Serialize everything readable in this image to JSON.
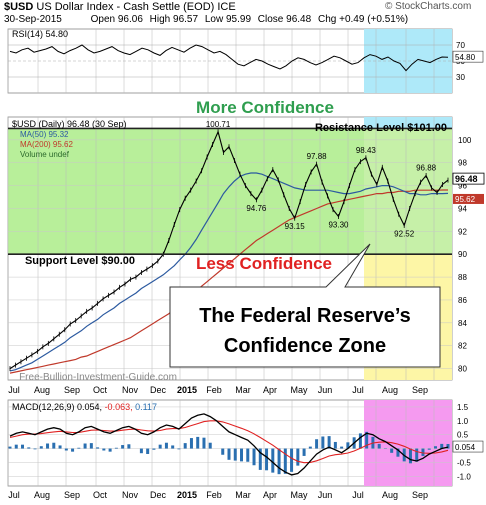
{
  "header": {
    "symbol": "$USD",
    "description": "US Dollar Index - Cash Settle (EOD)",
    "exchange": "ICE",
    "brand": "© StockCharts.com",
    "date": "30-Sep-2015",
    "open_label": "Open",
    "open": "96.06",
    "high_label": "High",
    "high": "96.57",
    "low_label": "Low",
    "low": "95.99",
    "close_label": "Close",
    "close": "96.48",
    "chg_label": "Chg",
    "chg": "+0.49 (+0.51%)"
  },
  "colors": {
    "green_zone": "#b8ef9a",
    "yellow_zone": "#fdf6a6",
    "cyan_zone": "#aee9f9",
    "magenta_zone": "#f59af0",
    "line_green": "#2f9e4f",
    "line_red": "#e02222",
    "ma50": "#2c5aa0",
    "ma200": "#c0392b",
    "resistance": "#222222",
    "support": "#222222"
  },
  "chart_data": [
    {
      "type": "line",
      "panel": "rsi",
      "legend": "RSI(14) 54.80",
      "ylim": [
        10,
        90
      ],
      "ticks": [
        "70",
        "50",
        "30"
      ],
      "last_value": "54.80",
      "overbought": 70,
      "oversold": 30,
      "values": [
        62,
        60,
        64,
        66,
        61,
        63,
        65,
        68,
        62,
        59,
        63,
        66,
        70,
        64,
        60,
        62,
        65,
        68,
        63,
        60,
        58,
        62,
        66,
        64,
        60,
        57,
        63,
        67,
        64,
        61,
        66,
        70,
        68,
        64,
        60,
        62,
        58,
        52,
        46,
        44,
        48,
        52,
        50,
        46,
        43,
        40,
        44,
        50,
        54,
        52,
        48,
        45,
        48,
        52,
        56,
        54,
        50,
        46,
        48,
        54,
        58,
        56,
        52,
        55,
        50,
        47,
        38,
        46,
        52,
        50,
        48,
        52,
        55,
        54.8
      ]
    },
    {
      "type": "line",
      "panel": "price",
      "legend": "$USD (Daily) 96.48 (30 Sep)",
      "legend_ma50": "MA(50) 95.32",
      "legend_ma200": "MA(200) 95.62",
      "legend_volume": "Volume undef",
      "ylim": [
        79,
        102
      ],
      "ticks": [
        "100",
        "98",
        "96",
        "94",
        "92",
        "90",
        "88",
        "86",
        "84",
        "82",
        "80"
      ],
      "last_value": "96.48",
      "ma200_last": "95.62",
      "annotations": [
        "100.71",
        "94.76",
        "97.88",
        "93.15",
        "93.30",
        "98.43",
        "92.52",
        "96.88"
      ],
      "resistance": 101,
      "support": 90,
      "resistance_label": "Resistance Level $101.00",
      "support_label": "Support Level $90.00",
      "more_label": "More Confidence",
      "less_label": "Less Confidence",
      "zone_title": "The Federal Reserve’s Confidence Zone",
      "watermark": "Free-Bullion-Investment-Guide.com",
      "values": [
        80.0,
        80.3,
        80.6,
        80.9,
        81.2,
        81.5,
        81.9,
        82.2,
        82.6,
        83.0,
        83.4,
        83.9,
        84.2,
        84.6,
        85.0,
        85.3,
        85.7,
        86.1,
        86.4,
        86.7,
        87.1,
        87.4,
        87.8,
        88.0,
        88.4,
        88.7,
        89.0,
        89.4,
        90.0,
        91.2,
        92.6,
        93.9,
        94.9,
        95.6,
        96.4,
        97.3,
        98.5,
        99.6,
        100.71,
        98.9,
        99.4,
        98.2,
        97.0,
        96.0,
        95.3,
        94.76,
        95.6,
        96.6,
        97.4,
        96.5,
        95.2,
        94.0,
        93.15,
        94.6,
        96.1,
        97.2,
        97.88,
        96.3,
        95.1,
        93.9,
        93.3,
        94.6,
        96.0,
        97.4,
        98.1,
        98.43,
        97.0,
        96.1,
        97.6,
        96.4,
        94.8,
        93.5,
        92.52,
        94.0,
        95.3,
        96.3,
        96.88,
        95.8,
        95.4,
        96.1,
        96.48
      ],
      "ma50": [
        79.8,
        79.9,
        80.1,
        80.3,
        80.5,
        80.8,
        81.1,
        81.4,
        81.7,
        82.0,
        82.3,
        82.7,
        83.0,
        83.3,
        83.7,
        84.0,
        84.3,
        84.7,
        85.0,
        85.3,
        85.7,
        86.0,
        86.3,
        86.6,
        87.0,
        87.3,
        87.6,
        87.9,
        88.2,
        88.6,
        89.0,
        89.5,
        90.0,
        90.6,
        91.3,
        92.1,
        92.9,
        93.7,
        94.5,
        95.3,
        95.9,
        96.4,
        96.8,
        97.0,
        97.1,
        97.1,
        97.0,
        96.8,
        96.6,
        96.4,
        96.2,
        96.0,
        95.8,
        95.7,
        95.6,
        95.6,
        95.6,
        95.6,
        95.6,
        95.5,
        95.4,
        95.3,
        95.3,
        95.4,
        95.5,
        95.7,
        95.8,
        95.9,
        96.0,
        96.0,
        95.9,
        95.7,
        95.5,
        95.3,
        95.3,
        95.2,
        95.2,
        95.3,
        95.3,
        95.3,
        95.32
      ],
      "ma200": [
        79.6,
        79.7,
        79.8,
        79.9,
        80.0,
        80.1,
        80.2,
        80.3,
        80.4,
        80.5,
        80.6,
        80.7,
        80.8,
        81.0,
        81.1,
        81.3,
        81.5,
        81.7,
        81.9,
        82.1,
        82.3,
        82.5,
        82.7,
        83.0,
        83.3,
        83.6,
        83.9,
        84.2,
        84.5,
        84.8,
        85.2,
        85.6,
        86.0,
        86.4,
        86.8,
        87.2,
        87.6,
        88.0,
        88.4,
        88.8,
        89.2,
        89.6,
        90.0,
        90.4,
        90.8,
        91.2,
        91.5,
        91.8,
        92.1,
        92.4,
        92.7,
        93.0,
        93.2,
        93.4,
        93.6,
        93.8,
        94.0,
        94.2,
        94.4,
        94.5,
        94.6,
        94.7,
        94.8,
        94.9,
        95.0,
        95.1,
        95.2,
        95.3,
        95.3,
        95.4,
        95.4,
        95.5,
        95.5,
        95.5,
        95.6,
        95.6,
        95.6,
        95.6,
        95.6,
        95.62,
        95.62
      ]
    },
    {
      "type": "line",
      "panel": "macd",
      "legend_prefix": "MACD(12,26,9)",
      "macd_value": "0.054",
      "signal_value": "-0.063",
      "hist_value": "0.117",
      "last_value": "0.054",
      "ylim": [
        -1.35,
        1.75
      ],
      "ticks": [
        "1.5",
        "1.0",
        "0.5",
        "0.0",
        "-0.5",
        "-1.0"
      ],
      "macd": [
        0.45,
        0.55,
        0.6,
        0.55,
        0.5,
        0.6,
        0.7,
        0.75,
        0.7,
        0.55,
        0.5,
        0.6,
        0.75,
        0.8,
        0.7,
        0.6,
        0.55,
        0.65,
        0.75,
        0.8,
        0.7,
        0.55,
        0.5,
        0.6,
        0.75,
        0.85,
        0.8,
        0.7,
        0.9,
        1.1,
        1.2,
        1.25,
        1.15,
        1.0,
        0.8,
        0.6,
        0.5,
        0.4,
        0.3,
        0.1,
        -0.15,
        -0.3,
        -0.5,
        -0.7,
        -0.85,
        -0.95,
        -0.9,
        -0.7,
        -0.45,
        -0.2,
        -0.05,
        0.05,
        -0.05,
        -0.15,
        0.0,
        0.2,
        0.4,
        0.55,
        0.5,
        0.35,
        0.25,
        0.1,
        -0.05,
        -0.25,
        -0.4,
        -0.45,
        -0.35,
        -0.2,
        -0.1,
        0.0,
        0.054
      ],
      "signal": [
        0.4,
        0.45,
        0.5,
        0.52,
        0.52,
        0.54,
        0.57,
        0.6,
        0.62,
        0.6,
        0.58,
        0.58,
        0.62,
        0.66,
        0.67,
        0.65,
        0.63,
        0.63,
        0.66,
        0.69,
        0.7,
        0.67,
        0.64,
        0.63,
        0.65,
        0.7,
        0.72,
        0.72,
        0.76,
        0.83,
        0.9,
        0.97,
        1.0,
        1.0,
        0.96,
        0.89,
        0.81,
        0.73,
        0.64,
        0.53,
        0.4,
        0.26,
        0.12,
        -0.04,
        -0.2,
        -0.35,
        -0.46,
        -0.51,
        -0.5,
        -0.44,
        -0.36,
        -0.27,
        -0.22,
        -0.2,
        -0.16,
        -0.09,
        0.01,
        0.12,
        0.2,
        0.23,
        0.24,
        0.21,
        0.16,
        0.08,
        -0.02,
        -0.11,
        -0.16,
        -0.17,
        -0.16,
        -0.12,
        -0.063
      ]
    }
  ],
  "x_axis": {
    "top_labels": [
      "Jul",
      "Aug",
      "Sep",
      "Oct",
      "Nov",
      "Dec",
      "2015",
      "Feb",
      "Mar",
      "Apr",
      "May",
      "Jun",
      "Jul",
      "Aug",
      "Sep"
    ],
    "bottom_labels": [
      "Jul",
      "Aug",
      "Sep",
      "Oct",
      "Nov",
      "Dec",
      "2015",
      "Feb",
      "Mar",
      "Apr",
      "May",
      "Jun",
      "Jul",
      "Aug",
      "Sep"
    ]
  }
}
